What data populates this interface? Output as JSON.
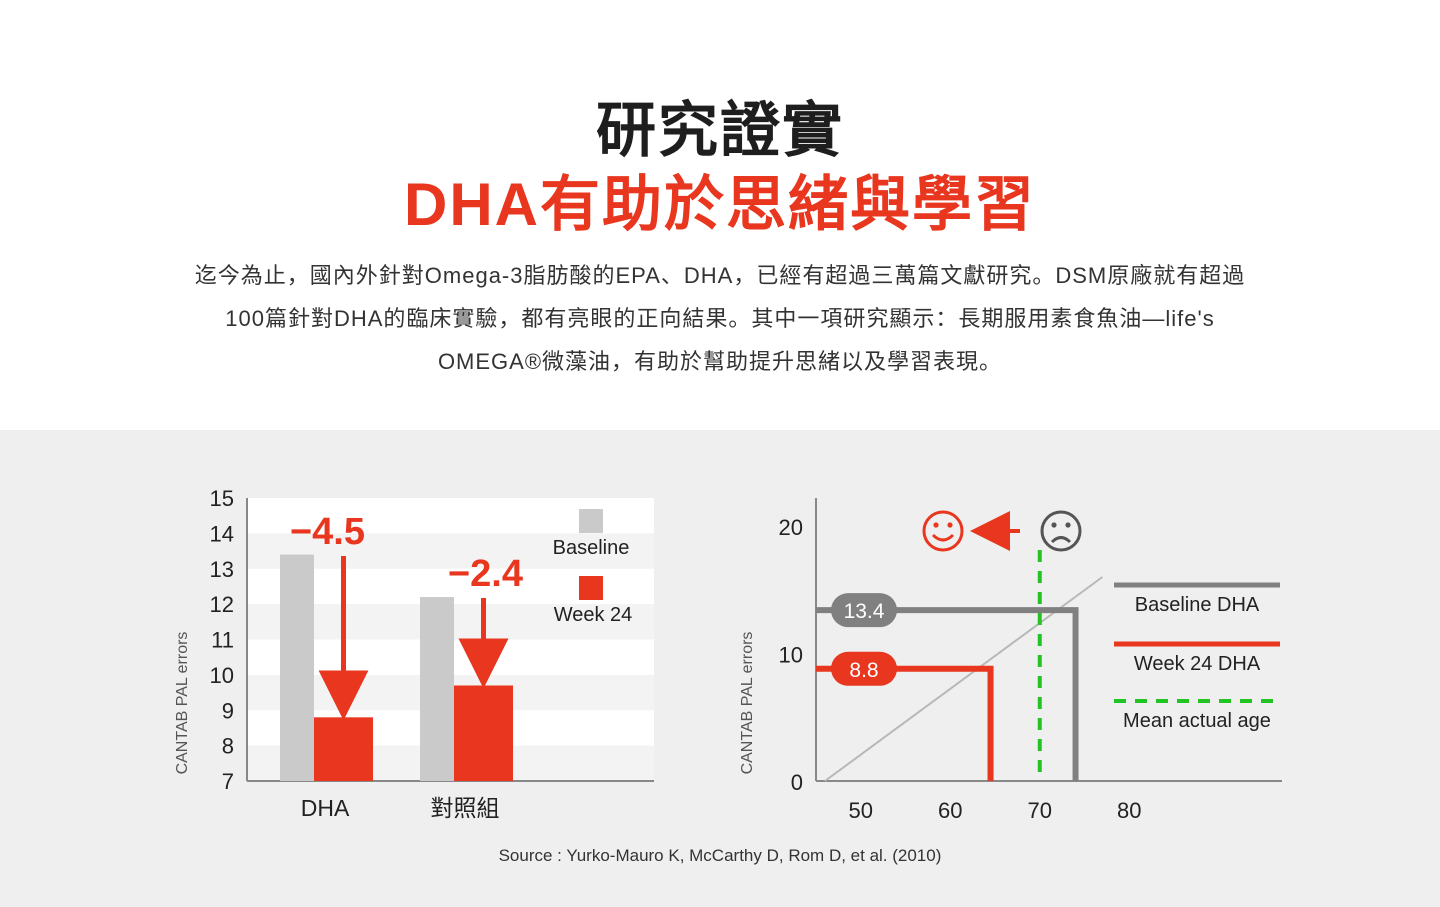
{
  "heading": {
    "line1": "研究證實",
    "line2": "DHA有助於思緒與學習"
  },
  "intro": {
    "line1": "迄今為止，國內外針對Omega-3脂肪酸的EPA、DHA，已經有超過三萬篇文獻研究。DSM原廠就有超過",
    "line2": "100篇針對DHA的臨床實驗，都有亮眼的正向結果。其中一項研究顯示：長期服用素食魚油—life's",
    "line3": "OMEGA®微藻油，有助於幫助提升思緒以及學習表現。"
  },
  "colors": {
    "accent": "#e8361f",
    "baseline_bar": "#cacaca",
    "baseline_line": "#808080",
    "age_line": "#22c422",
    "band_bg": "#efefef"
  },
  "chart_data": [
    {
      "type": "bar",
      "ylabel": "CANTAB PAL errors",
      "ylim": [
        7,
        15
      ],
      "yticks": [
        "15",
        "14",
        "13",
        "12",
        "11",
        "10",
        "9",
        "8",
        "7"
      ],
      "categories": [
        "DHA",
        "對照組"
      ],
      "series": [
        {
          "name": "Baseline",
          "values": [
            13.4,
            12.2
          ]
        },
        {
          "name": "Week 24",
          "values": [
            8.8,
            9.7
          ]
        }
      ],
      "annotations": [
        "−4.5",
        "−2.4"
      ],
      "legend_position": "top-right"
    },
    {
      "type": "line",
      "ylabel": "CANTAB PAL errors",
      "xlim": [
        45,
        90
      ],
      "ylim": [
        0,
        22
      ],
      "xticks": [
        "50",
        "60",
        "70",
        "80"
      ],
      "yticks": [
        "20",
        "10",
        "0"
      ],
      "series": [
        {
          "name": "Baseline DHA",
          "y": 13.4,
          "label": "13.4",
          "x_at": 74
        },
        {
          "name": "Week 24 DHA",
          "y": 8.8,
          "label": "8.8",
          "x_at": 64.5
        },
        {
          "name": "Mean actual age",
          "x": 70
        }
      ],
      "reference_line": {
        "x": [
          46,
          77
        ],
        "y": [
          0,
          16
        ]
      },
      "icons": [
        "smiley-icon",
        "arrow-left-icon",
        "sad-face-icon"
      ],
      "legend_position": "right"
    }
  ],
  "source": "Source : Yurko-Mauro K, McCarthy D, Rom D, et al. (2010)"
}
